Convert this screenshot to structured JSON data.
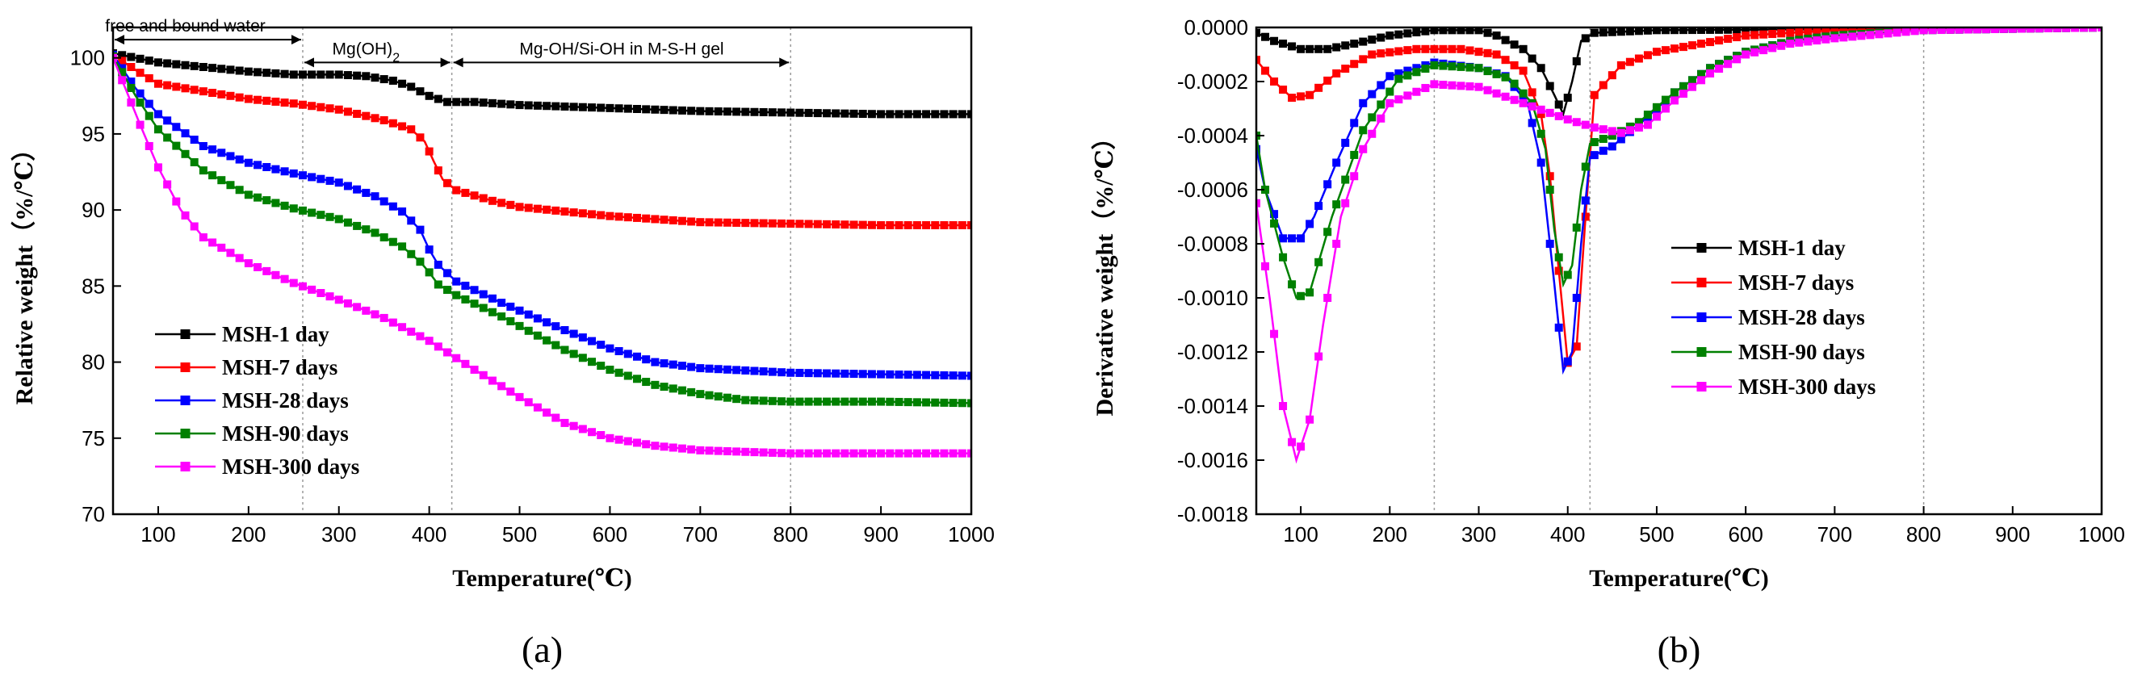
{
  "chart_data": [
    {
      "id": "a",
      "type": "line",
      "panel_label": "(a)",
      "xlabel": "Temperature(℃)",
      "ylabel": "Relative weight（%/℃）",
      "xlim": [
        50,
        1000
      ],
      "ylim": [
        70,
        102
      ],
      "xticks": [
        100,
        200,
        300,
        400,
        500,
        600,
        700,
        800,
        900,
        1000
      ],
      "yticks": [
        70,
        75,
        80,
        85,
        90,
        95,
        100
      ],
      "legend_position": "bottom-left",
      "vlines": [
        260,
        425,
        800
      ],
      "annotations": [
        {
          "text": "free and bound water",
          "x_from": 50,
          "x_to": 260,
          "y": 101.2,
          "text_x": 130
        },
        {
          "text": "Mg(OH)",
          "sub": "2",
          "x_from": 260,
          "x_to": 425,
          "y": 99.7,
          "text_x": 330
        },
        {
          "text": "Mg-OH/Si-OH in M-S-H gel",
          "x_from": 425,
          "x_to": 800,
          "y": 99.7,
          "text_x": 613
        }
      ],
      "series": [
        {
          "name": "MSH-1 day",
          "color": "#000000",
          "points": [
            [
              50,
              100.3
            ],
            [
              100,
              99.7
            ],
            [
              150,
              99.4
            ],
            [
              200,
              99.1
            ],
            [
              250,
              98.9
            ],
            [
              300,
              98.9
            ],
            [
              330,
              98.8
            ],
            [
              360,
              98.5
            ],
            [
              380,
              98.1
            ],
            [
              400,
              97.5
            ],
            [
              420,
              97.1
            ],
            [
              450,
              97.1
            ],
            [
              500,
              96.9
            ],
            [
              600,
              96.7
            ],
            [
              700,
              96.5
            ],
            [
              800,
              96.4
            ],
            [
              900,
              96.3
            ],
            [
              1000,
              96.3
            ]
          ]
        },
        {
          "name": "MSH-7 days",
          "color": "#ff0000",
          "points": [
            [
              50,
              100.2
            ],
            [
              75,
              99.2
            ],
            [
              100,
              98.3
            ],
            [
              150,
              97.8
            ],
            [
              200,
              97.3
            ],
            [
              250,
              97.0
            ],
            [
              300,
              96.6
            ],
            [
              350,
              95.9
            ],
            [
              380,
              95.3
            ],
            [
              395,
              94.5
            ],
            [
              405,
              93.2
            ],
            [
              415,
              92.0
            ],
            [
              430,
              91.3
            ],
            [
              470,
              90.6
            ],
            [
              500,
              90.2
            ],
            [
              600,
              89.6
            ],
            [
              700,
              89.2
            ],
            [
              800,
              89.1
            ],
            [
              900,
              89.0
            ],
            [
              1000,
              89.0
            ]
          ]
        },
        {
          "name": "MSH-28 days",
          "color": "#0000ff",
          "points": [
            [
              50,
              100.2
            ],
            [
              75,
              98.0
            ],
            [
              100,
              96.3
            ],
            [
              150,
              94.2
            ],
            [
              200,
              93.1
            ],
            [
              250,
              92.4
            ],
            [
              300,
              91.8
            ],
            [
              340,
              90.9
            ],
            [
              370,
              89.9
            ],
            [
              390,
              88.7
            ],
            [
              400,
              87.4
            ],
            [
              410,
              86.4
            ],
            [
              430,
              85.3
            ],
            [
              480,
              83.9
            ],
            [
              550,
              82.1
            ],
            [
              600,
              80.9
            ],
            [
              650,
              80.0
            ],
            [
              700,
              79.6
            ],
            [
              800,
              79.3
            ],
            [
              900,
              79.2
            ],
            [
              1000,
              79.1
            ]
          ]
        },
        {
          "name": "MSH-90 days",
          "color": "#008000",
          "points": [
            [
              50,
              100.1
            ],
            [
              75,
              97.5
            ],
            [
              100,
              95.3
            ],
            [
              150,
              92.6
            ],
            [
              200,
              91.0
            ],
            [
              250,
              90.1
            ],
            [
              300,
              89.4
            ],
            [
              340,
              88.5
            ],
            [
              370,
              87.6
            ],
            [
              390,
              86.6
            ],
            [
              400,
              85.9
            ],
            [
              410,
              85.1
            ],
            [
              430,
              84.4
            ],
            [
              480,
              83.0
            ],
            [
              550,
              80.8
            ],
            [
              600,
              79.5
            ],
            [
              650,
              78.5
            ],
            [
              700,
              77.9
            ],
            [
              750,
              77.5
            ],
            [
              800,
              77.4
            ],
            [
              900,
              77.4
            ],
            [
              1000,
              77.3
            ]
          ]
        },
        {
          "name": "MSH-300 days",
          "color": "#ff00ff",
          "points": [
            [
              50,
              100.0
            ],
            [
              65,
              97.8
            ],
            [
              80,
              95.6
            ],
            [
              100,
              92.8
            ],
            [
              125,
              90.0
            ],
            [
              150,
              88.2
            ],
            [
              200,
              86.5
            ],
            [
              250,
              85.2
            ],
            [
              300,
              84.1
            ],
            [
              350,
              82.9
            ],
            [
              400,
              81.4
            ],
            [
              450,
              79.5
            ],
            [
              500,
              77.7
            ],
            [
              550,
              76.0
            ],
            [
              600,
              75.0
            ],
            [
              650,
              74.5
            ],
            [
              700,
              74.2
            ],
            [
              800,
              74.0
            ],
            [
              900,
              74.0
            ],
            [
              1000,
              74.0
            ]
          ]
        }
      ]
    },
    {
      "id": "b",
      "type": "line",
      "panel_label": "(b)",
      "xlabel": "Temperature(℃)",
      "ylabel": "Derivative weight（%/℃）",
      "xlim": [
        50,
        1000
      ],
      "ylim": [
        -0.0018,
        0.0
      ],
      "xticks": [
        100,
        200,
        300,
        400,
        500,
        600,
        700,
        800,
        900,
        1000
      ],
      "yticks": [
        0.0,
        -0.0002,
        -0.0004,
        -0.0006,
        -0.0008,
        -0.001,
        -0.0012,
        -0.0014,
        -0.0016,
        -0.0018
      ],
      "ytick_labels": [
        "0.0000",
        "-0.0002",
        "-0.0004",
        "-0.0006",
        "-0.0008",
        "-0.0010",
        "-0.0012",
        "-0.0014",
        "-0.0016",
        "-0.0018"
      ],
      "legend_position": "center-right",
      "vlines": [
        250,
        425,
        800
      ],
      "series": [
        {
          "name": "MSH-1 day",
          "color": "#000000",
          "points": [
            [
              50,
              -2e-05
            ],
            [
              70,
              -5e-05
            ],
            [
              100,
              -8e-05
            ],
            [
              130,
              -8e-05
            ],
            [
              160,
              -6e-05
            ],
            [
              200,
              -3e-05
            ],
            [
              250,
              -1e-05
            ],
            [
              300,
              -1e-05
            ],
            [
              320,
              -3e-05
            ],
            [
              350,
              -8e-05
            ],
            [
              370,
              -0.00015
            ],
            [
              385,
              -0.00025
            ],
            [
              395,
              -0.00032
            ],
            [
              405,
              -0.0002
            ],
            [
              415,
              -5e-05
            ],
            [
              430,
              -2e-05
            ],
            [
              500,
              -1e-05
            ],
            [
              1000,
              0.0
            ]
          ]
        },
        {
          "name": "MSH-7 days",
          "color": "#ff0000",
          "points": [
            [
              50,
              -0.00012
            ],
            [
              70,
              -0.0002
            ],
            [
              90,
              -0.00026
            ],
            [
              110,
              -0.00025
            ],
            [
              140,
              -0.00017
            ],
            [
              180,
              -0.0001
            ],
            [
              230,
              -8e-05
            ],
            [
              280,
              -8e-05
            ],
            [
              320,
              -0.0001
            ],
            [
              350,
              -0.00016
            ],
            [
              370,
              -0.00032
            ],
            [
              380,
              -0.00055
            ],
            [
              390,
              -0.0009
            ],
            [
              400,
              -0.00124
            ],
            [
              410,
              -0.00118
            ],
            [
              420,
              -0.0007
            ],
            [
              430,
              -0.00025
            ],
            [
              460,
              -0.00014
            ],
            [
              500,
              -9e-05
            ],
            [
              550,
              -6e-05
            ],
            [
              600,
              -3e-05
            ],
            [
              700,
              -1e-05
            ],
            [
              1000,
              0.0
            ]
          ]
        },
        {
          "name": "MSH-28 days",
          "color": "#0000ff",
          "points": [
            [
              50,
              -0.00045
            ],
            [
              60,
              -0.0006
            ],
            [
              80,
              -0.00078
            ],
            [
              100,
              -0.00078
            ],
            [
              115,
              -0.0007
            ],
            [
              140,
              -0.0005
            ],
            [
              170,
              -0.00028
            ],
            [
              200,
              -0.00018
            ],
            [
              250,
              -0.00013
            ],
            [
              300,
              -0.00015
            ],
            [
              330,
              -0.00018
            ],
            [
              355,
              -0.00028
            ],
            [
              370,
              -0.0005
            ],
            [
              385,
              -0.00095
            ],
            [
              395,
              -0.00127
            ],
            [
              405,
              -0.0012
            ],
            [
              415,
              -0.0008
            ],
            [
              425,
              -0.00048
            ],
            [
              450,
              -0.00044
            ],
            [
              480,
              -0.00036
            ],
            [
              520,
              -0.00024
            ],
            [
              560,
              -0.00015
            ],
            [
              600,
              -9e-05
            ],
            [
              650,
              -5e-05
            ],
            [
              700,
              -3e-05
            ],
            [
              800,
              -1e-05
            ],
            [
              1000,
              0.0
            ]
          ]
        },
        {
          "name": "MSH-90 days",
          "color": "#008000",
          "points": [
            [
              50,
              -0.0004
            ],
            [
              60,
              -0.0006
            ],
            [
              80,
              -0.00085
            ],
            [
              95,
              -0.001
            ],
            [
              110,
              -0.00098
            ],
            [
              135,
              -0.0007
            ],
            [
              170,
              -0.00038
            ],
            [
              210,
              -0.00019
            ],
            [
              250,
              -0.00014
            ],
            [
              300,
              -0.00015
            ],
            [
              335,
              -0.00019
            ],
            [
              360,
              -0.00028
            ],
            [
              375,
              -0.00045
            ],
            [
              385,
              -0.00075
            ],
            [
              395,
              -0.00095
            ],
            [
              405,
              -0.00088
            ],
            [
              415,
              -0.0006
            ],
            [
              425,
              -0.00043
            ],
            [
              450,
              -0.0004
            ],
            [
              480,
              -0.00035
            ],
            [
              520,
              -0.00024
            ],
            [
              560,
              -0.00015
            ],
            [
              600,
              -9e-05
            ],
            [
              650,
              -5e-05
            ],
            [
              700,
              -3e-05
            ],
            [
              800,
              -1e-05
            ],
            [
              1000,
              0.0
            ]
          ]
        },
        {
          "name": "MSH-300 days",
          "color": "#ff00ff",
          "points": [
            [
              50,
              -0.00065
            ],
            [
              65,
              -0.001
            ],
            [
              80,
              -0.0014
            ],
            [
              95,
              -0.0016
            ],
            [
              110,
              -0.00145
            ],
            [
              125,
              -0.0011
            ],
            [
              145,
              -0.0007
            ],
            [
              170,
              -0.00045
            ],
            [
              200,
              -0.00028
            ],
            [
              250,
              -0.00021
            ],
            [
              300,
              -0.00022
            ],
            [
              350,
              -0.00028
            ],
            [
              400,
              -0.00034
            ],
            [
              430,
              -0.00037
            ],
            [
              460,
              -0.00039
            ],
            [
              490,
              -0.00036
            ],
            [
              520,
              -0.00027
            ],
            [
              560,
              -0.00017
            ],
            [
              600,
              -0.0001
            ],
            [
              650,
              -6e-05
            ],
            [
              700,
              -4e-05
            ],
            [
              800,
              -1e-05
            ],
            [
              1000,
              0.0
            ]
          ]
        }
      ]
    }
  ]
}
